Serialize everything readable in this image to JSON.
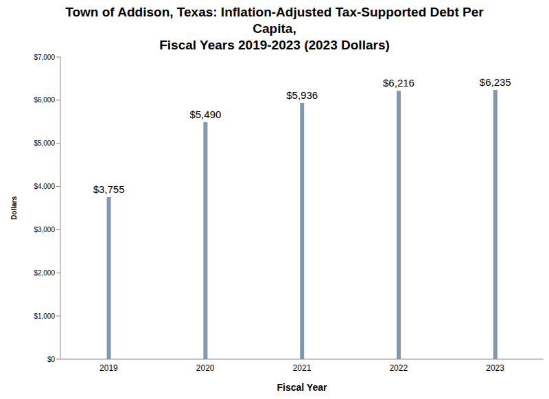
{
  "chart_data": {
    "type": "bar",
    "title": "Town of Addison, Texas: Inflation-Adjusted Tax-Supported Debt Per\nCapita,\nFiscal Years 2019-2023 (2023 Dollars)",
    "x_label": "Fiscal Year",
    "y_label": "Dollars",
    "categories": [
      "2019",
      "2020",
      "2021",
      "2022",
      "2023"
    ],
    "values": [
      3755,
      5490,
      5936,
      6216,
      6235
    ],
    "value_labels": [
      "$3,755",
      "$5,490",
      "$5,936",
      "$6,216",
      "$6,235"
    ],
    "color": "#8497b0",
    "ylim": [
      0,
      7000
    ],
    "yticks": [
      {
        "value": 0,
        "label": "$0"
      },
      {
        "value": 1000,
        "label": "$1,000"
      },
      {
        "value": 2000,
        "label": "$2,000"
      },
      {
        "value": 3000,
        "label": "$3,000"
      },
      {
        "value": 4000,
        "label": "$4,000"
      },
      {
        "value": 5000,
        "label": "$5,000"
      },
      {
        "value": 6000,
        "label": "$6,000"
      },
      {
        "value": 7000,
        "label": "$7,000"
      }
    ],
    "grid": false,
    "data_labels": true
  }
}
